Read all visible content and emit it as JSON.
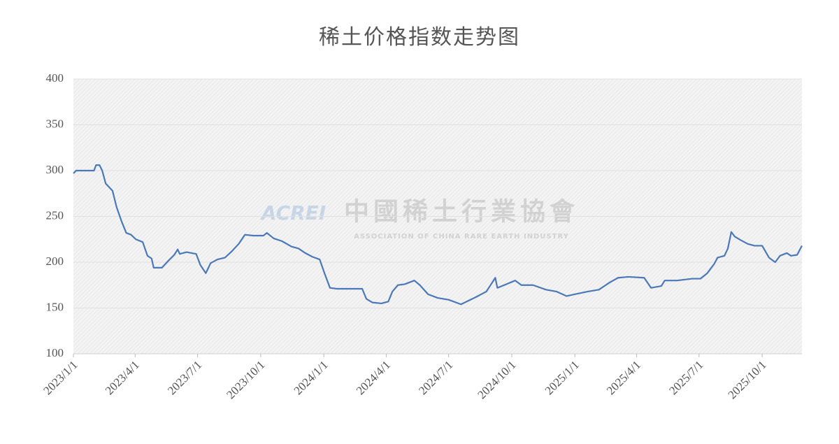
{
  "chart_data": {
    "type": "line",
    "title": "稀土价格指数走势图",
    "watermark": {
      "logo": "ACREI",
      "name": "中國稀土行業協會",
      "subtitle": "ASSOCIATION OF CHINA RARE EARTH INDUSTRY"
    },
    "x": [
      "2023/1/1",
      "2023/1/5",
      "2023/1/31",
      "2023/2/3",
      "2023/2/8",
      "2023/2/12",
      "2023/2/17",
      "2023/2/27",
      "2023/3/5",
      "2023/3/12",
      "2023/3/19",
      "2023/3/26",
      "2023/4/2",
      "2023/4/12",
      "2023/4/19",
      "2023/4/25",
      "2023/4/28",
      "2023/5/10",
      "2023/5/20",
      "2023/5/28",
      "2023/6/2",
      "2023/6/5",
      "2023/6/15",
      "2023/6/29",
      "2023/7/5",
      "2023/7/13",
      "2023/7/20",
      "2023/7/30",
      "2023/8/10",
      "2023/8/20",
      "2023/8/30",
      "2023/9/8",
      "2023/9/20",
      "2023/10/5",
      "2023/10/10",
      "2023/10/20",
      "2023/11/1",
      "2023/11/15",
      "2023/11/25",
      "2023/12/5",
      "2023/12/15",
      "2023/12/26",
      "2024/1/2",
      "2024/1/10",
      "2024/1/20",
      "2024/2/10",
      "2024/2/26",
      "2024/3/3",
      "2024/3/12",
      "2024/3/25",
      "2024/4/4",
      "2024/4/10",
      "2024/4/18",
      "2024/4/28",
      "2024/5/12",
      "2024/5/20",
      "2024/6/1",
      "2024/6/15",
      "2024/7/1",
      "2024/7/19",
      "2024/7/30",
      "2024/8/10",
      "2024/8/25",
      "2024/9/7",
      "2024/9/10",
      "2024/9/20",
      "2024/10/6",
      "2024/10/15",
      "2024/11/1",
      "2024/11/20",
      "2024/12/5",
      "2024/12/20",
      "2025/1/1",
      "2025/1/20",
      "2025/2/5",
      "2025/2/21",
      "2025/3/5",
      "2025/3/20",
      "2025/4/12",
      "2025/4/22",
      "2025/5/7",
      "2025/5/12",
      "2025/5/30",
      "2025/6/21",
      "2025/7/3",
      "2025/7/13",
      "2025/7/23",
      "2025/7/28",
      "2025/8/7",
      "2025/8/12",
      "2025/8/17",
      "2025/8/22",
      "2025/8/31",
      "2025/9/10",
      "2025/9/20",
      "2025/10/1",
      "2025/10/11",
      "2025/10/20",
      "2025/10/27",
      "2025/11/6",
      "2025/11/12",
      "2025/11/21",
      "2025/11/28"
    ],
    "series": [
      {
        "color": "#4a78b8",
        "values": [
          297,
          300,
          300,
          306,
          306,
          300,
          286,
          278,
          260,
          245,
          232,
          230,
          225,
          222,
          207,
          204,
          194,
          194,
          202,
          208,
          214,
          209,
          211,
          209,
          197,
          188,
          199,
          203,
          205,
          212,
          220,
          230,
          229,
          229,
          232,
          226,
          223,
          217,
          215,
          210,
          206,
          203,
          188,
          172,
          171,
          171,
          171,
          160,
          156,
          155,
          157,
          168,
          175,
          176,
          180,
          175,
          165,
          161,
          159,
          154,
          158,
          162,
          168,
          183,
          172,
          175,
          180,
          175,
          175,
          170,
          168,
          163,
          165,
          168,
          170,
          178,
          183,
          184,
          183,
          172,
          174,
          180,
          180,
          182,
          182,
          188,
          198,
          205,
          207,
          215,
          233,
          228,
          224,
          220,
          218,
          218,
          205,
          200,
          207,
          210,
          207,
          208,
          218
        ]
      }
    ],
    "xlim": [
      "2023/1/1",
      "2025/11/28"
    ],
    "xticks": [
      "2023/1/1",
      "2023/4/1",
      "2023/7/1",
      "2023/10/1",
      "2024/1/1",
      "2024/4/1",
      "2024/7/1",
      "2024/10/1",
      "2025/1/1",
      "2025/4/1",
      "2025/7/1",
      "2025/10/1"
    ],
    "ylim": [
      100,
      400
    ],
    "yticks": [
      100,
      150,
      200,
      250,
      300,
      350,
      400
    ],
    "grid": true
  }
}
